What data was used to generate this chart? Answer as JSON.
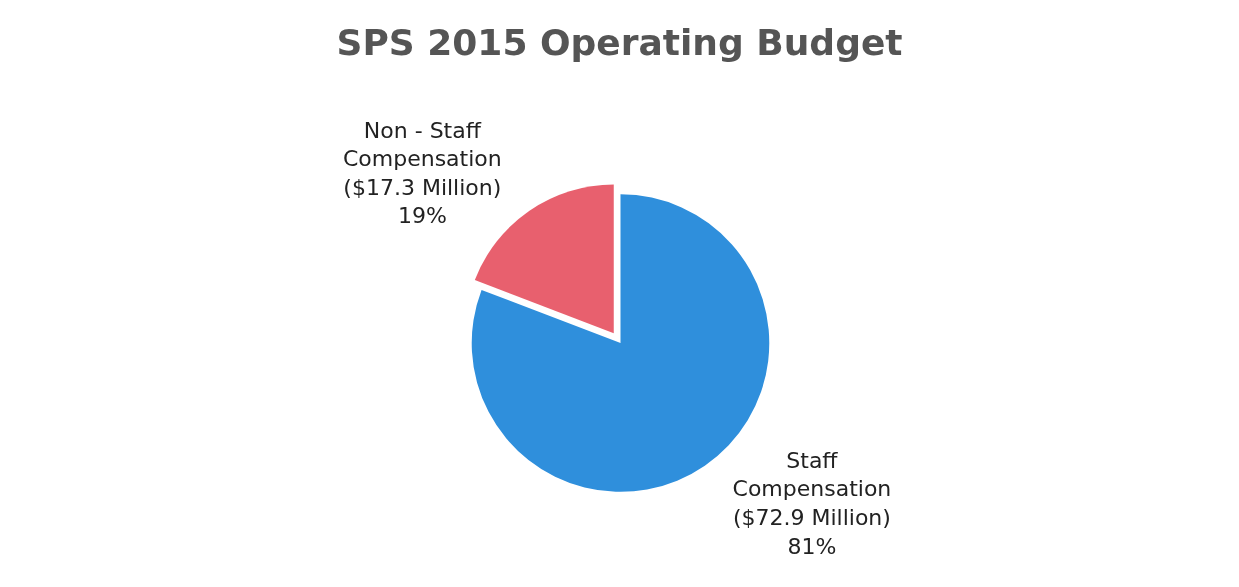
{
  "chart_data": {
    "type": "pie",
    "title": "SPS 2015 Operating Budget",
    "categories": [
      "Staff Compensation",
      "Non - Staff Compensation"
    ],
    "values": [
      72.9,
      17.3
    ],
    "colors": [
      "#2f8fdc",
      "#e8606e"
    ],
    "value_labels": [
      "($72.9 Million)\n81%",
      "($17.3 Million)\n19%"
    ],
    "legend": false
  }
}
